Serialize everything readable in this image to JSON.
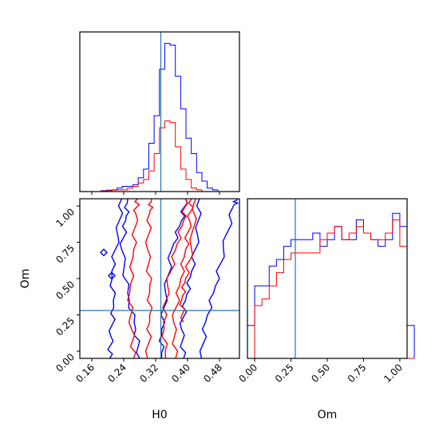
{
  "chart_data": {
    "type": "corner",
    "parameters": [
      "H0",
      "Om"
    ],
    "truth": {
      "H0": 0.333,
      "Om": 0.28
    },
    "colors": {
      "series_a": "#0000ff",
      "series_b": "#ff0000",
      "truth": "#1f77b4"
    },
    "axes": {
      "H0": {
        "label": "H0",
        "range": [
          0.13,
          0.53
        ],
        "ticks": [
          "0.16",
          "0.24",
          "0.32",
          "0.40",
          "0.48"
        ]
      },
      "Om": {
        "label": "Om",
        "range": [
          -0.05,
          1.05
        ],
        "ticks": [
          "0.00",
          "0.25",
          "0.50",
          "0.75",
          "1.00"
        ]
      }
    },
    "hist_H0": {
      "edges_start": 0.13,
      "bin_width": 0.0133,
      "series_a_counts": [
        0,
        0,
        0,
        0,
        0.5,
        0.8,
        1,
        2,
        3,
        3,
        4,
        8,
        13,
        28,
        44,
        71,
        86,
        85,
        67,
        48,
        31,
        22,
        11,
        6,
        2,
        1,
        0,
        0,
        0,
        0
      ],
      "series_b_counts": [
        0,
        0,
        0,
        0,
        0.3,
        0.5,
        0.8,
        1,
        1,
        2,
        3,
        5,
        7,
        12,
        22,
        37,
        41,
        40,
        26,
        13,
        7,
        2,
        1,
        0,
        0,
        0,
        0,
        0,
        0,
        0
      ]
    },
    "hist_Om": {
      "edges_start": -0.05,
      "bin_width": 0.05,
      "series_a_counts": [
        0.5,
        1.1,
        1.1,
        1.4,
        1.5,
        1.7,
        1.8,
        1.8,
        1.8,
        1.9,
        1.7,
        1.8,
        2.0,
        1.8,
        1.8,
        2.1,
        1.9,
        1.8,
        1.7,
        1.8,
        2.2,
        2.0,
        0.5
      ],
      "series_b_counts": [
        0,
        0.8,
        0.9,
        1.1,
        1.3,
        1.5,
        1.6,
        1.6,
        1.6,
        1.6,
        1.8,
        1.9,
        2.0,
        1.8,
        1.9,
        2.0,
        1.9,
        1.8,
        1.8,
        1.9,
        2.1,
        1.7,
        0
      ]
    },
    "contours_2d": {
      "series_a": [
        [
          [
            0.205,
            -0.05
          ],
          [
            0.208,
            0.1
          ],
          [
            0.215,
            0.3
          ],
          [
            0.21,
            0.55
          ],
          [
            0.225,
            0.8
          ],
          [
            0.235,
            1.05
          ]
        ],
        [
          [
            0.28,
            -0.05
          ],
          [
            0.27,
            0.15
          ],
          [
            0.25,
            0.4
          ],
          [
            0.235,
            0.7
          ],
          [
            0.245,
            0.9
          ],
          [
            0.25,
            1.05
          ]
        ],
        [
          [
            0.335,
            -0.05
          ],
          [
            0.335,
            0.15
          ],
          [
            0.345,
            0.4
          ],
          [
            0.36,
            0.7
          ],
          [
            0.385,
            0.9
          ],
          [
            0.395,
            1.05
          ]
        ],
        [
          [
            0.39,
            -0.05
          ],
          [
            0.385,
            0.15
          ],
          [
            0.395,
            0.35
          ],
          [
            0.41,
            0.55
          ],
          [
            0.425,
            0.8
          ],
          [
            0.43,
            1.05
          ]
        ],
        [
          [
            0.435,
            -0.05
          ],
          [
            0.445,
            0.2
          ],
          [
            0.47,
            0.45
          ],
          [
            0.49,
            0.7
          ],
          [
            0.515,
            1.0
          ],
          [
            0.525,
            1.05
          ]
        ]
      ],
      "series_b": [
        [
          [
            0.265,
            -0.05
          ],
          [
            0.26,
            0.15
          ],
          [
            0.255,
            0.4
          ],
          [
            0.265,
            0.7
          ],
          [
            0.27,
            0.95
          ],
          [
            0.275,
            1.05
          ]
        ],
        [
          [
            0.3,
            -0.05
          ],
          [
            0.305,
            0.2
          ],
          [
            0.305,
            0.45
          ],
          [
            0.3,
            0.7
          ],
          [
            0.305,
            0.95
          ],
          [
            0.31,
            1.05
          ]
        ],
        [
          [
            0.345,
            -0.05
          ],
          [
            0.34,
            0.2
          ],
          [
            0.35,
            0.45
          ],
          [
            0.37,
            0.7
          ],
          [
            0.39,
            0.9
          ],
          [
            0.395,
            1.05
          ]
        ],
        [
          [
            0.37,
            -0.05
          ],
          [
            0.365,
            0.2
          ],
          [
            0.38,
            0.45
          ],
          [
            0.395,
            0.7
          ],
          [
            0.405,
            0.9
          ],
          [
            0.41,
            1.05
          ]
        ],
        [
          [
            0.39,
            0.2
          ],
          [
            0.385,
            0.35
          ],
          [
            0.395,
            0.5
          ],
          [
            0.41,
            0.7
          ],
          [
            0.42,
            1.05
          ]
        ]
      ],
      "islands_a": [
        [
          0.19,
          0.68
        ],
        [
          0.21,
          0.52
        ]
      ]
    }
  }
}
